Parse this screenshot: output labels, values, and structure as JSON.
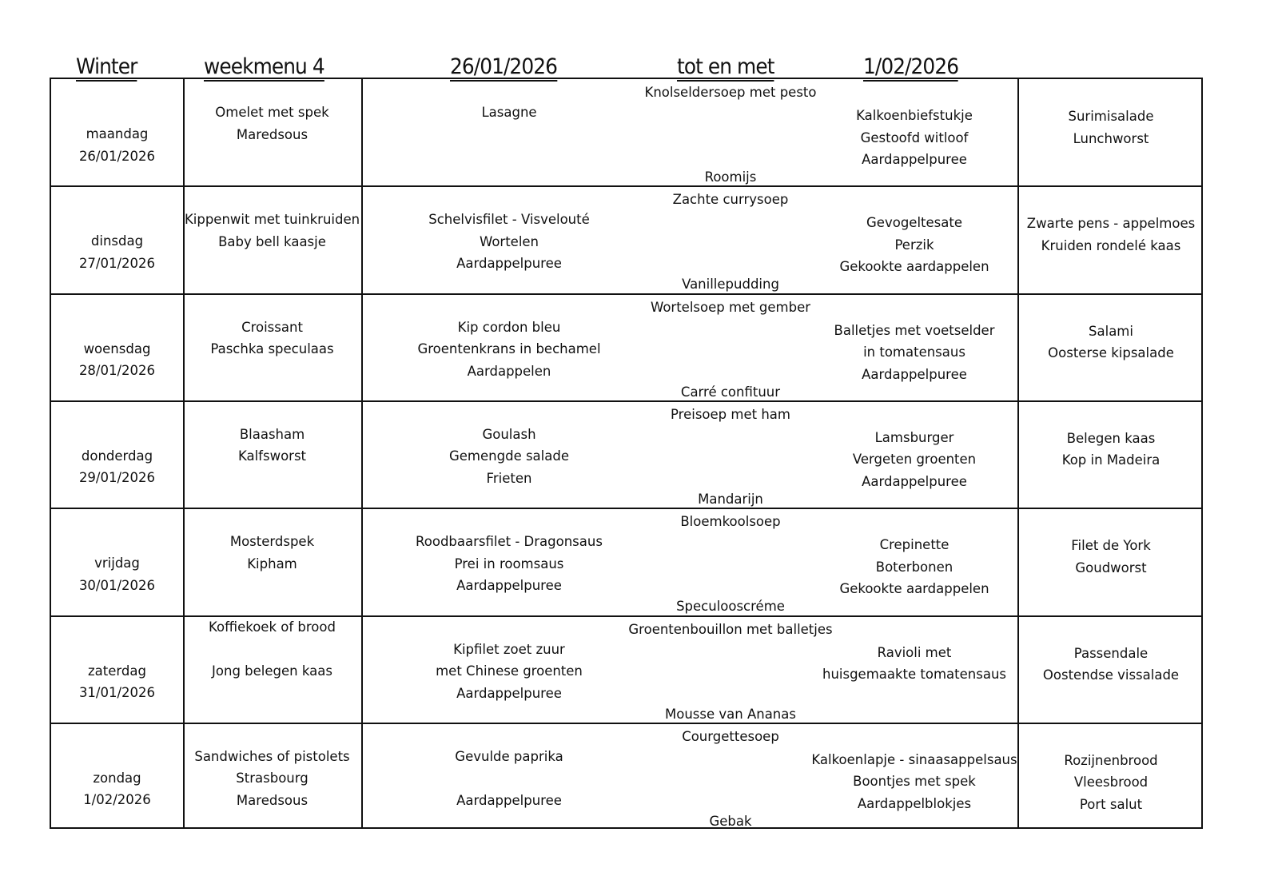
{
  "header": {
    "season": "Winter",
    "menu": "weekmenu 4",
    "start_date": "26/01/2026",
    "until": "tot en met",
    "end_date": "1/02/2026"
  },
  "days": [
    {
      "day": "maandag",
      "date": "26/01/2026",
      "breakfast": [
        "Omelet met spek",
        "Maredsous"
      ],
      "soup": "Knolseldersoep met pesto",
      "lunch": [
        "Lasagne"
      ],
      "dessert": "Roomijs",
      "evening": [
        "Kalkoenbiefstukje",
        "Gestoofd witloof",
        "Aardappelpuree"
      ],
      "supper": [
        "Surimisalade",
        "Lunchworst"
      ]
    },
    {
      "day": "dinsdag",
      "date": "27/01/2026",
      "breakfast": [
        "Kippenwit met tuinkruiden",
        "Baby bell kaasje"
      ],
      "soup": "Zachte currysoep",
      "lunch": [
        "Schelvisfilet - Visvelouté",
        "Wortelen",
        "Aardappelpuree"
      ],
      "dessert": "Vanillepudding",
      "evening": [
        "Gevogeltesate",
        "Perzik",
        "Gekookte aardappelen"
      ],
      "supper": [
        "Zwarte pens - appelmoes",
        "Kruiden rondelé kaas"
      ]
    },
    {
      "day": "woensdag",
      "date": "28/01/2026",
      "breakfast": [
        "Croissant",
        "Paschka speculaas"
      ],
      "soup": "Wortelsoep met gember",
      "lunch": [
        "Kip cordon bleu",
        "Groentenkrans in bechamel",
        "Aardappelen"
      ],
      "dessert": "Carré confituur",
      "evening": [
        "Balletjes met voetselder",
        "in tomatensaus",
        "Aardappelpuree"
      ],
      "supper": [
        "Salami",
        "Oosterse kipsalade"
      ]
    },
    {
      "day": "donderdag",
      "date": "29/01/2026",
      "breakfast": [
        "Blaasham",
        "Kalfsworst"
      ],
      "soup": "Preisoep met ham",
      "lunch": [
        "Goulash",
        "Gemengde salade",
        "Frieten"
      ],
      "dessert": "Mandarijn",
      "evening": [
        "Lamsburger",
        "Vergeten groenten",
        "Aardappelpuree"
      ],
      "supper": [
        "Belegen kaas",
        "Kop in Madeira"
      ]
    },
    {
      "day": "vrijdag",
      "date": "30/01/2026",
      "breakfast": [
        "Mosterdspek",
        "Kipham"
      ],
      "soup": "Bloemkoolsoep",
      "lunch": [
        "Roodbaarsfilet - Dragonsaus",
        "Prei in roomsaus",
        "Aardappelpuree"
      ],
      "dessert": "Speculooscréme",
      "evening": [
        "Crepinette",
        "Boterbonen",
        "Gekookte aardappelen"
      ],
      "supper": [
        "Filet de York",
        "Goudworst"
      ]
    },
    {
      "day": "zaterdag",
      "date": "31/01/2026",
      "breakfast": [
        "Koffiekoek of brood",
        "",
        "Jong belegen kaas"
      ],
      "soup": "Groentenbouillon met balletjes",
      "lunch": [
        "Kipfilet zoet zuur",
        "met Chinese groenten",
        "Aardappelpuree"
      ],
      "dessert": "Mousse van Ananas",
      "evening": [
        "Ravioli met",
        "huisgemaakte tomatensaus"
      ],
      "supper": [
        "Passendale",
        "Oostendse vissalade"
      ]
    },
    {
      "day": "zondag",
      "date": "1/02/2026",
      "breakfast": [
        "Sandwiches of pistolets",
        "Strasbourg",
        "Maredsous"
      ],
      "soup": "Courgettesoep",
      "lunch": [
        "Gevulde paprika",
        "",
        "Aardappelpuree"
      ],
      "dessert": "Gebak",
      "evening": [
        "Kalkoenlapje - sinaasappelsaus",
        "Boontjes met spek",
        "Aardappelblokjes"
      ],
      "supper": [
        "Rozijnenbrood",
        "Vleesbrood",
        "Port salut"
      ]
    }
  ]
}
